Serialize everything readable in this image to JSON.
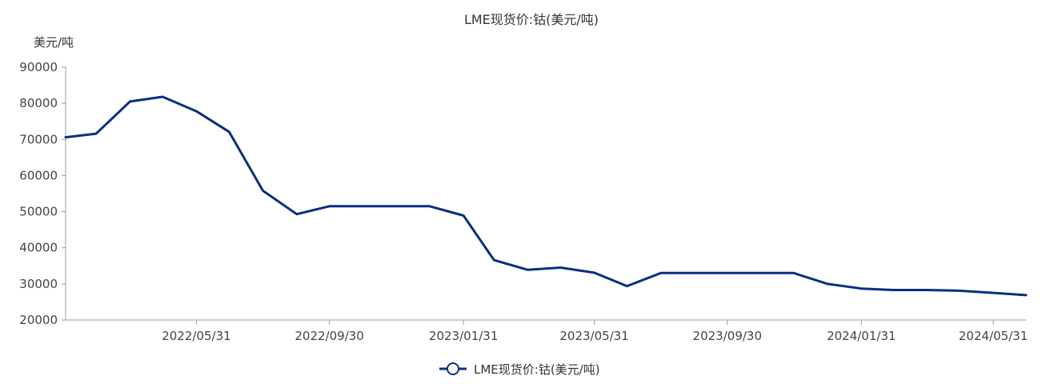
{
  "chart_data": {
    "type": "line",
    "title": "LME现货价:钴(美元/吨)",
    "y_unit": "美元/吨",
    "ylim": [
      20000,
      90000
    ],
    "yticks": [
      "90000",
      "80000",
      "70000",
      "60000",
      "50000",
      "40000",
      "30000",
      "20000"
    ],
    "xticks": [
      "2022/05/31",
      "2022/09/30",
      "2023/01/31",
      "2023/05/31",
      "2023/09/30",
      "2024/01/31",
      "2024/05/31"
    ],
    "grid": false,
    "legend_position": "bottom",
    "series": [
      {
        "name": "LME现货价:钴(美元/吨)",
        "color": "#0b2f7f",
        "x": [
          "2022/01/31",
          "2022/02/28",
          "2022/03/31",
          "2022/04/30",
          "2022/05/31",
          "2022/06/30",
          "2022/07/31",
          "2022/08/31",
          "2022/09/30",
          "2022/10/31",
          "2022/11/30",
          "2022/12/31",
          "2023/01/31",
          "2023/02/28",
          "2023/03/31",
          "2023/04/30",
          "2023/05/31",
          "2023/06/30",
          "2023/07/31",
          "2023/08/31",
          "2023/09/30",
          "2023/10/31",
          "2023/11/30",
          "2023/12/31",
          "2024/01/31",
          "2024/02/29",
          "2024/03/31",
          "2024/04/30",
          "2024/05/31",
          "2024/06/30"
        ],
        "values": [
          70600,
          71600,
          80500,
          81800,
          77800,
          72100,
          55800,
          49300,
          51500,
          51500,
          51500,
          51500,
          48900,
          36600,
          33900,
          34500,
          33100,
          29400,
          33000,
          33000,
          33000,
          33000,
          33000,
          30000,
          28700,
          28300,
          28300,
          28100,
          27500,
          26900
        ]
      }
    ]
  }
}
